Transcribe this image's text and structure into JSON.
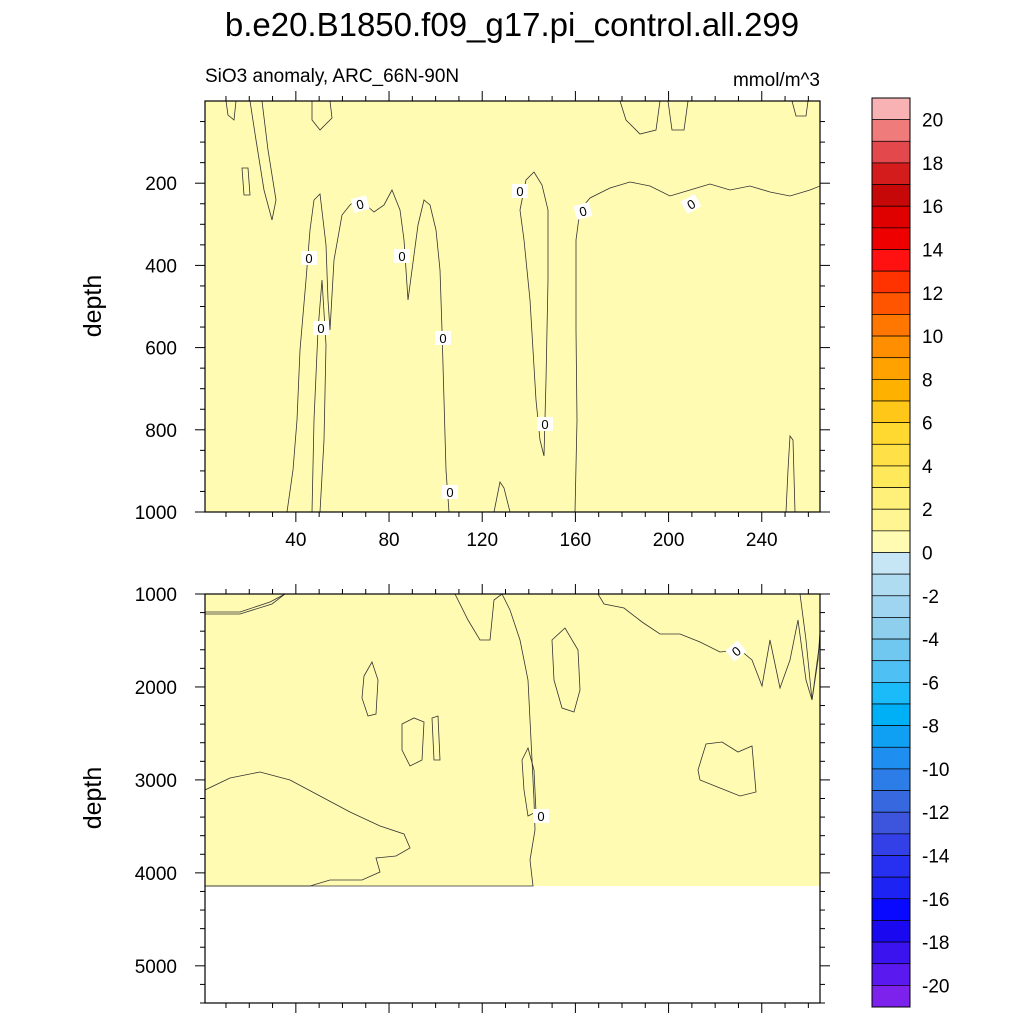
{
  "chart_data": {
    "type": "heatmap",
    "title": "b.e20.B1850.f09_g17.pi_control.all.299",
    "left_subtitle": "SiO3 anomaly, ARC_66N-90N",
    "right_subtitle": "mmol/m^3",
    "ylabel": "depth",
    "x_ticks": [
      40,
      80,
      120,
      160,
      200,
      240
    ],
    "xlim": [
      1,
      265
    ],
    "top_panel": {
      "ylim": [
        0,
        1000
      ],
      "y_ticks": [
        200,
        400,
        600,
        800,
        1000
      ]
    },
    "bottom_panel": {
      "ylim": [
        1000,
        5400
      ],
      "y_ticks": [
        1000,
        2000,
        3000,
        4000,
        5000
      ]
    },
    "contour_label": "0",
    "colorbar": {
      "labels": [
        "20",
        "18",
        "16",
        "14",
        "12",
        "10",
        "8",
        "6",
        "4",
        "2",
        "0",
        "-2",
        "-4",
        "-6",
        "-8",
        "-10",
        "-12",
        "-14",
        "-16",
        "-18",
        "-20"
      ],
      "colors": [
        "#f9b2b4",
        "#f07b7b",
        "#e3494c",
        "#d41c1c",
        "#c60808",
        "#df0000",
        "#ee0000",
        "#ff1111",
        "#ff3300",
        "#ff5500",
        "#ff7700",
        "#ff8f00",
        "#ffa200",
        "#ffb100",
        "#ffc818",
        "#ffd830",
        "#ffe046",
        "#ffe95a",
        "#fff07a",
        "#fff693",
        "#fffbb2",
        "#c6e6f6",
        "#b0dcf1",
        "#9fd5f0",
        "#8ecfee",
        "#70c8f0",
        "#4ec0f4",
        "#1bbaf8",
        "#00b0f6",
        "#0fa0f4",
        "#1e8ff0",
        "#2d7de8",
        "#3868e0",
        "#3d55dc",
        "#3340e8",
        "#2730f0",
        "#1d23f3",
        "#0909ff",
        "#1a09f0",
        "#3b13ee",
        "#5a19ee",
        "#7d22ec"
      ],
      "unit": "mmol/m^3"
    },
    "fill_colors": {
      "positive_0_2": "#fffbb2",
      "negative_0_2": "#c6e6f6",
      "negative_2_4": "#a9daf0",
      "positive_2_4": "#fff07a"
    }
  }
}
